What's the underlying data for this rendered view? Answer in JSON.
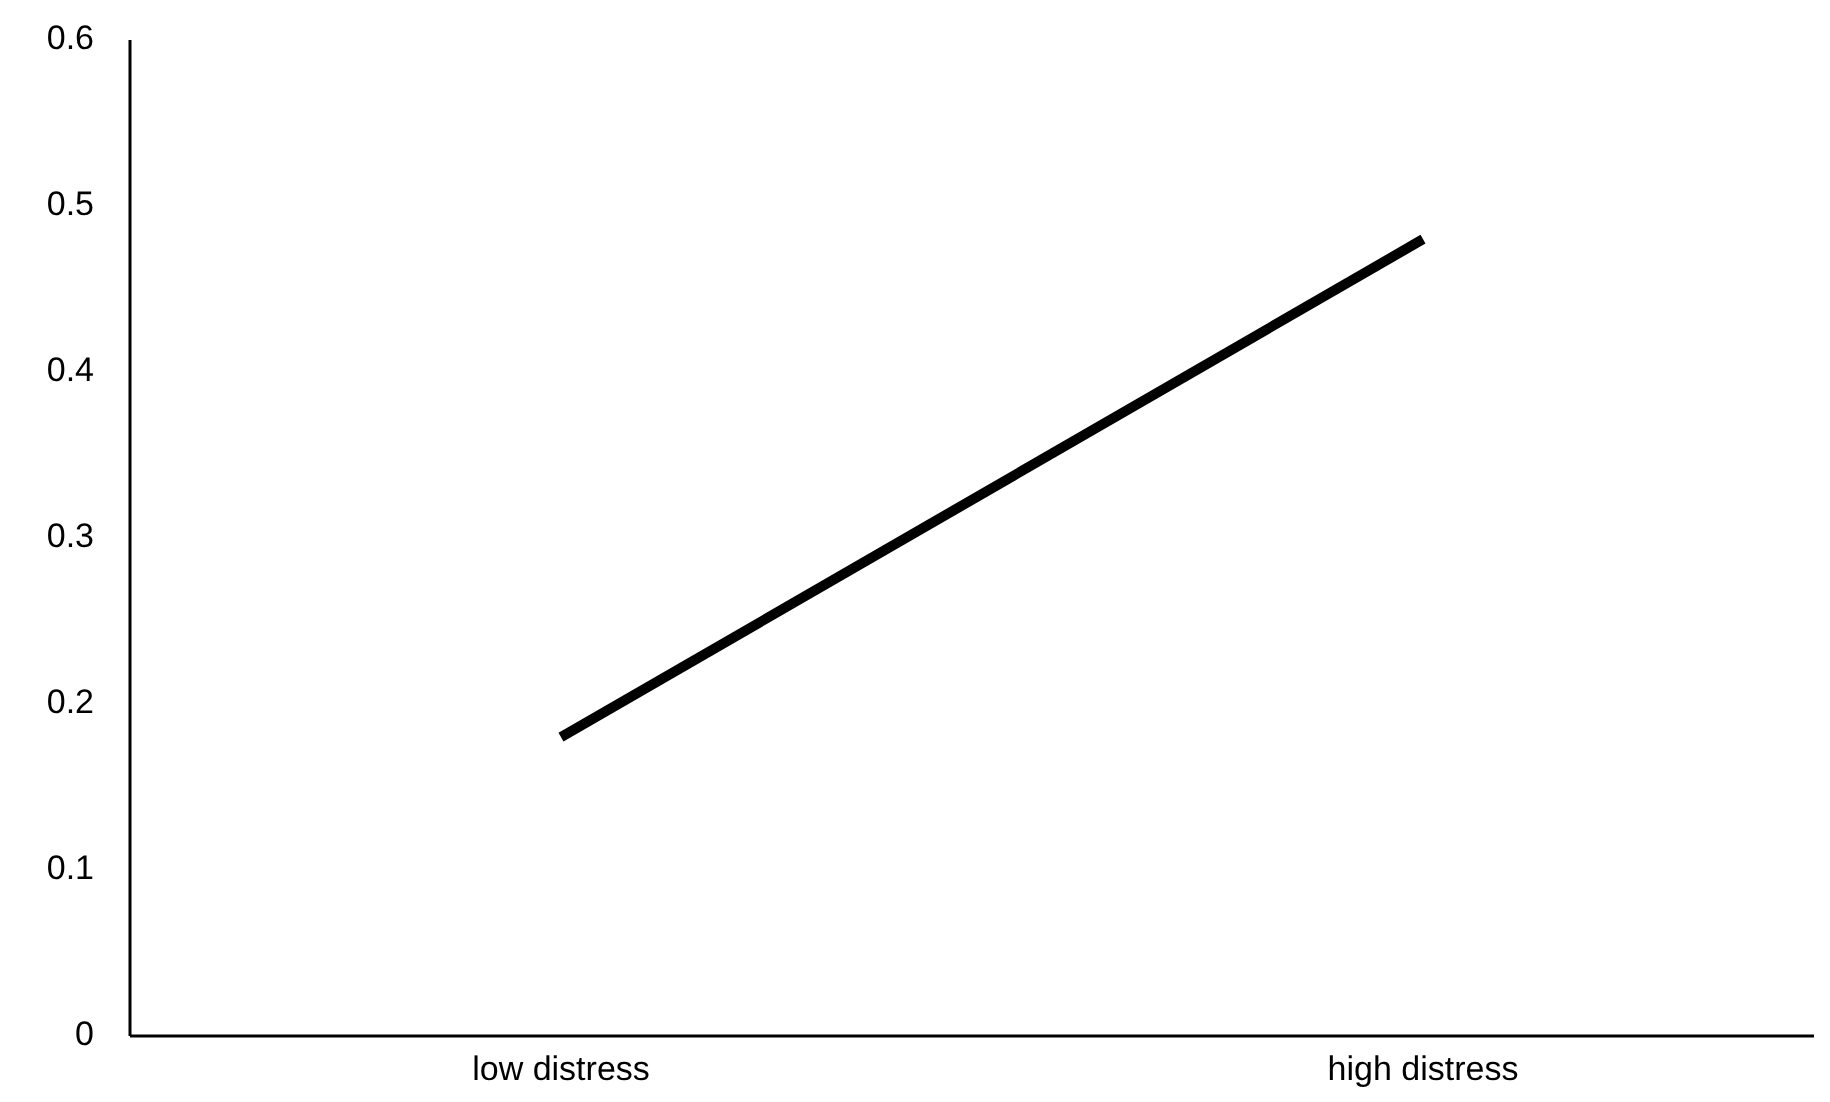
{
  "chart_data": {
    "type": "line",
    "categories": [
      "low distress",
      "high distress"
    ],
    "series": [
      {
        "color": "#000000",
        "values": [
          0.18,
          0.48
        ]
      }
    ],
    "ylim": [
      0,
      0.6
    ],
    "yticks": [
      0,
      0.1,
      0.2,
      0.3,
      0.4,
      0.5,
      0.6
    ],
    "grid": false,
    "marker": "none",
    "line_style": "solid"
  }
}
